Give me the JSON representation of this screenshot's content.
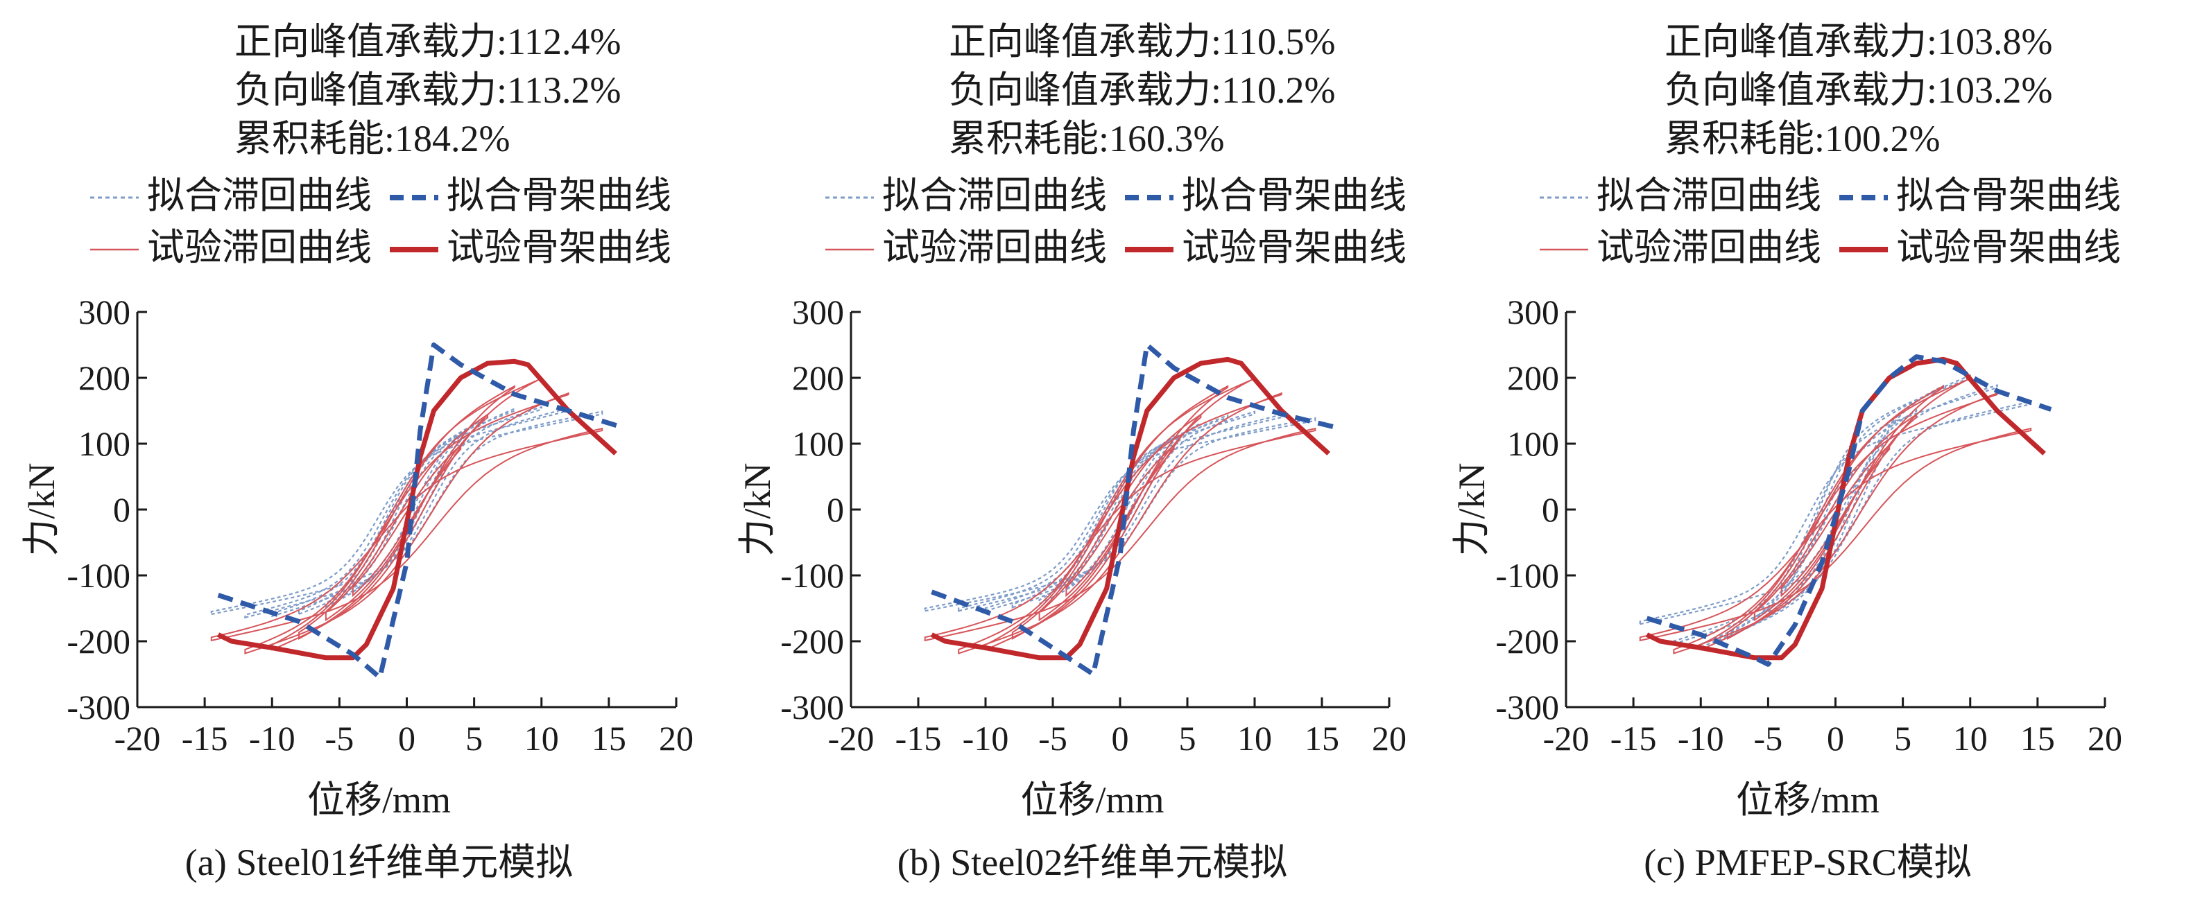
{
  "colors": {
    "fit": "#2f5aa8",
    "fit_light": "#7e9cc8",
    "test": "#c0282c",
    "test_light": "#d6555a",
    "axis": "#1a1a1a"
  },
  "legend": {
    "fit_hysteresis": "拟合滞回曲线",
    "fit_skeleton": "拟合骨架曲线",
    "test_hysteresis": "试验滞回曲线",
    "test_skeleton": "试验骨架曲线"
  },
  "chart_data": [
    {
      "type": "line",
      "caption": "(a) Steel01纤维单元模拟",
      "stats": [
        "正向峰值承载力:112.4%",
        "负向峰值承载力:113.2%",
        "累积耗能:184.2%"
      ],
      "xlabel": "位移/mm",
      "ylabel": "力/kN",
      "xlim": [
        -20,
        20
      ],
      "ylim": [
        -300,
        300
      ],
      "xticks": [
        "-20",
        "-15",
        "-10",
        "-5",
        "0",
        "5",
        "10",
        "15",
        "20"
      ],
      "yticks": [
        "300",
        "200",
        "100",
        "0",
        "-100",
        "-200",
        "-300"
      ],
      "fit_skeleton": [
        [
          -14,
          -130
        ],
        [
          -8,
          -170
        ],
        [
          -4,
          -220
        ],
        [
          -2,
          -255
        ],
        [
          0,
          -80
        ],
        [
          1,
          120
        ],
        [
          2,
          250
        ],
        [
          4,
          220
        ],
        [
          8,
          175
        ],
        [
          12,
          150
        ],
        [
          16,
          125
        ]
      ],
      "test_skeleton": [
        [
          -14,
          -190
        ],
        [
          -13,
          -200
        ],
        [
          -10,
          -210
        ],
        [
          -6,
          -225
        ],
        [
          -4,
          -225
        ],
        [
          -3,
          -205
        ],
        [
          -1,
          -120
        ],
        [
          0,
          -20
        ],
        [
          1,
          80
        ],
        [
          2,
          150
        ],
        [
          4,
          200
        ],
        [
          6,
          222
        ],
        [
          8,
          225
        ],
        [
          9,
          220
        ],
        [
          12,
          150
        ],
        [
          15.5,
          85
        ]
      ],
      "fit_loop_amplitudes": [
        [
          4,
          120,
          125
        ],
        [
          6,
          140,
          145
        ],
        [
          8,
          150,
          155
        ],
        [
          10,
          152,
          158
        ],
        [
          12,
          150,
          160
        ],
        [
          14.5,
          145,
          155
        ]
      ],
      "test_loop_amplitudes": [
        [
          4,
          110,
          140
        ],
        [
          6,
          150,
          170
        ],
        [
          8,
          190,
          195
        ],
        [
          10,
          200,
          210
        ],
        [
          12,
          175,
          215
        ],
        [
          14.5,
          120,
          195
        ]
      ]
    },
    {
      "type": "line",
      "caption": "(b) Steel02纤维单元模拟",
      "stats": [
        "正向峰值承载力:110.5%",
        "负向峰值承载力:110.2%",
        "累积耗能:160.3%"
      ],
      "xlabel": "位移/mm",
      "ylabel": "力/kN",
      "xlim": [
        -20,
        20
      ],
      "ylim": [
        -300,
        300
      ],
      "xticks": [
        "-20",
        "-15",
        "-10",
        "-5",
        "0",
        "5",
        "10",
        "15",
        "20"
      ],
      "yticks": [
        "300",
        "200",
        "100",
        "0",
        "-100",
        "-200",
        "-300"
      ],
      "fit_skeleton": [
        [
          -14,
          -125
        ],
        [
          -8,
          -170
        ],
        [
          -5,
          -210
        ],
        [
          -2,
          -250
        ],
        [
          0,
          -70
        ],
        [
          1,
          120
        ],
        [
          2,
          250
        ],
        [
          4,
          215
        ],
        [
          8,
          170
        ],
        [
          12,
          145
        ],
        [
          16,
          125
        ]
      ],
      "test_skeleton": [
        [
          -14,
          -190
        ],
        [
          -13,
          -200
        ],
        [
          -10,
          -210
        ],
        [
          -6,
          -225
        ],
        [
          -4,
          -225
        ],
        [
          -3,
          -205
        ],
        [
          -1,
          -120
        ],
        [
          0,
          -20
        ],
        [
          1,
          80
        ],
        [
          2,
          150
        ],
        [
          4,
          200
        ],
        [
          6,
          222
        ],
        [
          8,
          228
        ],
        [
          9,
          222
        ],
        [
          12,
          150
        ],
        [
          15.5,
          85
        ]
      ],
      "fit_loop_amplitudes": [
        [
          4,
          115,
          120
        ],
        [
          6,
          130,
          140
        ],
        [
          8,
          140,
          145
        ],
        [
          10,
          145,
          150
        ],
        [
          12,
          140,
          150
        ],
        [
          14.5,
          135,
          150
        ]
      ],
      "test_loop_amplitudes": [
        [
          4,
          110,
          140
        ],
        [
          6,
          150,
          170
        ],
        [
          8,
          190,
          195
        ],
        [
          10,
          200,
          210
        ],
        [
          12,
          175,
          215
        ],
        [
          14.5,
          120,
          195
        ]
      ]
    },
    {
      "type": "line",
      "caption": "(c) PMFEP-SRC模拟",
      "stats": [
        "正向峰值承载力:103.8%",
        "负向峰值承载力:103.2%",
        "累积耗能:100.2%"
      ],
      "xlabel": "位移/mm",
      "ylabel": "力/kN",
      "xlim": [
        -20,
        20
      ],
      "ylim": [
        -300,
        300
      ],
      "xticks": [
        "-20",
        "-15",
        "-10",
        "-5",
        "0",
        "5",
        "10",
        "15",
        "20"
      ],
      "yticks": [
        "300",
        "200",
        "100",
        "0",
        "-100",
        "-200",
        "-300"
      ],
      "fit_skeleton": [
        [
          -14,
          -165
        ],
        [
          -10,
          -190
        ],
        [
          -6,
          -225
        ],
        [
          -5,
          -235
        ],
        [
          -3,
          -175
        ],
        [
          -1,
          -80
        ],
        [
          1,
          60
        ],
        [
          2,
          150
        ],
        [
          4,
          200
        ],
        [
          6,
          232
        ],
        [
          8,
          225
        ],
        [
          12,
          180
        ],
        [
          16,
          152
        ]
      ],
      "test_skeleton": [
        [
          -14,
          -190
        ],
        [
          -13,
          -200
        ],
        [
          -10,
          -210
        ],
        [
          -6,
          -225
        ],
        [
          -4,
          -225
        ],
        [
          -3,
          -205
        ],
        [
          -1,
          -120
        ],
        [
          0,
          -20
        ],
        [
          1,
          80
        ],
        [
          2,
          150
        ],
        [
          4,
          200
        ],
        [
          6,
          222
        ],
        [
          8,
          228
        ],
        [
          9,
          222
        ],
        [
          12,
          150
        ],
        [
          15.5,
          85
        ]
      ],
      "fit_loop_amplitudes": [
        [
          4,
          110,
          120
        ],
        [
          6,
          150,
          160
        ],
        [
          8,
          185,
          190
        ],
        [
          10,
          200,
          205
        ],
        [
          12,
          185,
          200
        ],
        [
          14.5,
          160,
          170
        ]
      ],
      "test_loop_amplitudes": [
        [
          4,
          110,
          140
        ],
        [
          6,
          150,
          170
        ],
        [
          8,
          190,
          195
        ],
        [
          10,
          200,
          210
        ],
        [
          12,
          175,
          215
        ],
        [
          14.5,
          120,
          195
        ]
      ]
    }
  ]
}
